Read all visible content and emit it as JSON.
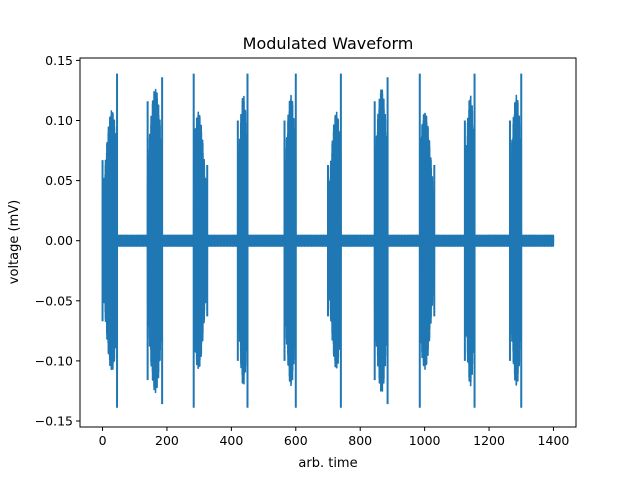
{
  "chart_data": {
    "type": "line",
    "title": "Modulated Waveform",
    "xlabel": "arb. time",
    "ylabel": "voltage (mV)",
    "xlim": [
      -70,
      1470
    ],
    "ylim": [
      -0.155,
      0.152
    ],
    "xticks": [
      0,
      200,
      400,
      600,
      800,
      1000,
      1200,
      1400
    ],
    "yticks": [
      -0.15,
      -0.1,
      -0.05,
      0.0,
      0.05,
      0.1,
      0.15
    ],
    "ytick_labels": [
      "−0.15",
      "−0.10",
      "−0.05",
      "0.00",
      "0.05",
      "0.10",
      "0.15"
    ],
    "grid": false,
    "series_color": "#1f77b4",
    "baseline_amplitude": 0.0045,
    "x_range": [
      0,
      1400
    ],
    "bursts": [
      {
        "start": 0,
        "end": 45,
        "start_amp": 0.067,
        "peak_amp": 0.139
      },
      {
        "start": 140,
        "end": 185,
        "start_amp": 0.116,
        "peak_amp": 0.136
      },
      {
        "start": 283,
        "end": 325,
        "start_amp": 0.139,
        "peak_amp": 0.063
      },
      {
        "start": 420,
        "end": 450,
        "start_amp": 0.1,
        "peak_amp": 0.139
      },
      {
        "start": 565,
        "end": 600,
        "start_amp": 0.1,
        "peak_amp": 0.139
      },
      {
        "start": 700,
        "end": 740,
        "start_amp": 0.063,
        "peak_amp": 0.139
      },
      {
        "start": 845,
        "end": 885,
        "start_amp": 0.116,
        "peak_amp": 0.136
      },
      {
        "start": 985,
        "end": 1030,
        "start_amp": 0.139,
        "peak_amp": 0.063
      },
      {
        "start": 1125,
        "end": 1155,
        "start_amp": 0.1,
        "peak_amp": 0.139
      },
      {
        "start": 1265,
        "end": 1300,
        "start_amp": 0.1,
        "peak_amp": 0.139
      }
    ]
  }
}
